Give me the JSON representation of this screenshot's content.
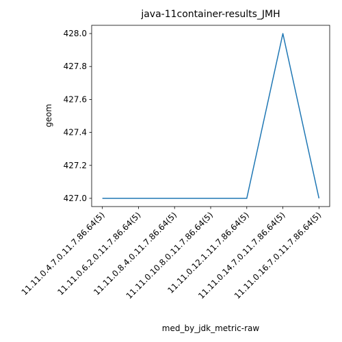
{
  "chart_data": {
    "type": "line",
    "title": "java-11container-results_JMH",
    "xlabel": "med_by_jdk_metric-raw",
    "ylabel": "geom",
    "categories": [
      "11.11.0.4.7.0.11.7.86.64(5)",
      "11.11.0.6.2.0.11.7.86.64(5)",
      "11.11.0.8.4.0.11.7.86.64(5)",
      "11.11.0.10.8.0.11.7.86.64(5)",
      "11.11.0.12.1.11.7.86.64(5)",
      "11.11.0.14.7.0.11.7.86.64(5)",
      "11.11.0.16.7.0.11.7.86.64(5)"
    ],
    "values": [
      427.0,
      427.0,
      427.0,
      427.0,
      427.0,
      428.0,
      427.0
    ],
    "ylim": [
      426.95,
      428.05
    ],
    "yticks": [
      "427.0",
      "427.2",
      "427.4",
      "427.6",
      "427.8",
      "428.0"
    ],
    "grid": false,
    "legend": "none",
    "colors": {
      "line": "#1f77b4",
      "axes": "#000000",
      "background": "#ffffff"
    }
  }
}
